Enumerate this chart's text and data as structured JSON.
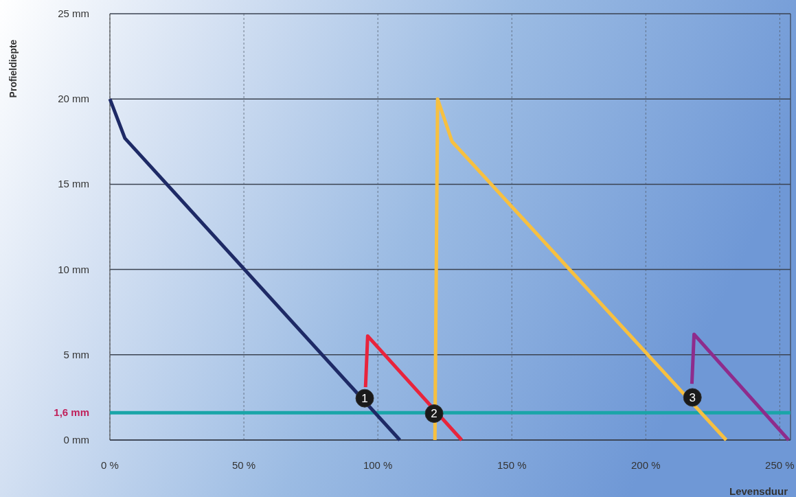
{
  "chart_data": {
    "type": "line",
    "xlabel": "Levensduur",
    "ylabel": "Profieldiepte",
    "xlim": [
      0,
      254
    ],
    "ylim": [
      0,
      25
    ],
    "xticks": [
      {
        "value": 0,
        "label": "0 %"
      },
      {
        "value": 50,
        "label": "50 %"
      },
      {
        "value": 100,
        "label": "100 %"
      },
      {
        "value": 150,
        "label": "150 %"
      },
      {
        "value": 200,
        "label": "200 %"
      },
      {
        "value": 250,
        "label": "250 %"
      }
    ],
    "yticks": [
      {
        "value": 0,
        "label": "0 mm"
      },
      {
        "value": 5,
        "label": "5 mm"
      },
      {
        "value": 10,
        "label": "10 mm"
      },
      {
        "value": 15,
        "label": "15 mm"
      },
      {
        "value": 20,
        "label": "20 mm"
      },
      {
        "value": 25,
        "label": "25 mm"
      }
    ],
    "grid": true,
    "marker": "none",
    "line_style": "solid",
    "series": [
      {
        "color": "#1e2a66",
        "x": [
          0,
          5.6,
          108.2
        ],
        "values": [
          20,
          17.7,
          0
        ]
      },
      {
        "color": "#e8243c",
        "x": [
          95.4,
          96.2,
          131.3
        ],
        "values": [
          3.1,
          6.1,
          0
        ]
      },
      {
        "color": "#f7c040",
        "x": [
          121.3,
          122.3,
          127.7,
          230
        ],
        "values": [
          0,
          20,
          17.5,
          0
        ]
      },
      {
        "color": "#8e2c8c",
        "x": [
          217.2,
          218,
          253.3
        ],
        "values": [
          3.3,
          6.2,
          0
        ]
      }
    ],
    "ref_lines": [
      {
        "axis": "y",
        "value": 1.6,
        "label": "1,6 mm",
        "color": "#1aa5a8"
      }
    ],
    "annotations": [
      {
        "text": "1",
        "x": 95.1,
        "y": 2.45
      },
      {
        "text": "2",
        "x": 121,
        "y": 1.55
      },
      {
        "text": "3",
        "x": 217.4,
        "y": 2.5
      }
    ]
  }
}
